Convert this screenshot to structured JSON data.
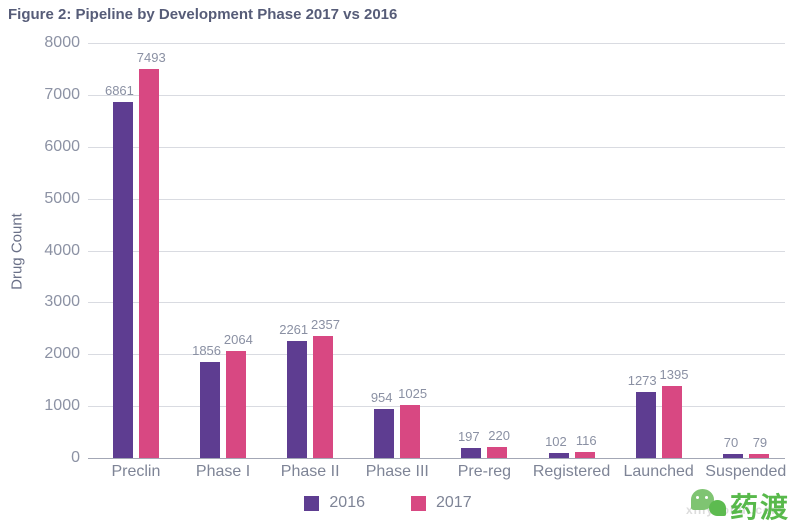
{
  "title": "Figure 2: Pipeline by Development Phase 2017 vs 2016",
  "chart_data": {
    "type": "bar",
    "title": "Figure 2: Pipeline by Development Phase 2017 vs 2016",
    "categories": [
      "Preclin",
      "Phase I",
      "Phase II",
      "Phase III",
      "Pre-reg",
      "Registered",
      "Launched",
      "Suspended"
    ],
    "series": [
      {
        "name": "2016",
        "color": "#5E3D91",
        "values": [
          6861,
          1856,
          2261,
          954,
          197,
          102,
          1273,
          70
        ]
      },
      {
        "name": "2017",
        "color": "#D84882",
        "values": [
          7493,
          2064,
          2357,
          1025,
          220,
          116,
          1395,
          79
        ]
      }
    ],
    "xlabel": "",
    "ylabel": "Drug Count",
    "ylim": [
      0,
      8000
    ],
    "ytick_step": 1000,
    "grid": true,
    "legend_position": "bottom",
    "data_labels": true
  },
  "watermark": {
    "logo_text": "药渡",
    "url_text": "xinyaohui.com"
  }
}
